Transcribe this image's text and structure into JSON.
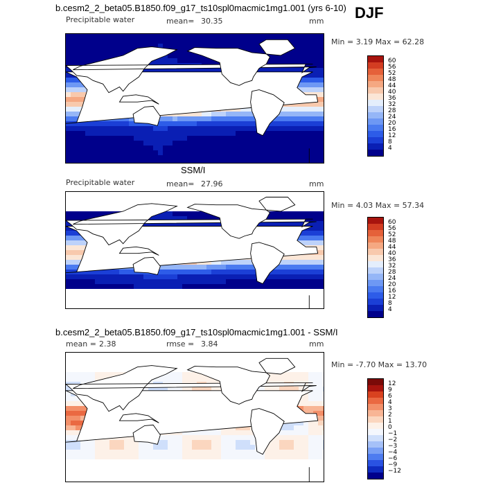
{
  "season": "DJF",
  "panels": [
    {
      "key": "model",
      "title": "b.cesm2_2_beta05.B1850.f09_g17_ts10spl0macmic1mg1.001 (yrs 6-10)",
      "left_label": "Precipitable water",
      "mean_label": "mean=",
      "mean_value": "30.35",
      "units": "mm",
      "minmax": "Min =    3.19  Max =   62.28",
      "levels": [
        "60",
        "56",
        "52",
        "48",
        "44",
        "40",
        "36",
        "32",
        "28",
        "24",
        "20",
        "16",
        "12",
        "8",
        "4"
      ]
    },
    {
      "key": "obs",
      "title": "SSM/I",
      "left_label": "Precipitable water",
      "mean_label": "mean=",
      "mean_value": "27.96",
      "units": "mm",
      "minmax": "Min =    4.03  Max =   57.34",
      "levels": [
        "60",
        "56",
        "52",
        "48",
        "44",
        "40",
        "36",
        "32",
        "28",
        "24",
        "20",
        "16",
        "12",
        "8",
        "4"
      ]
    },
    {
      "key": "diff",
      "title": "b.cesm2_2_beta05.B1850.f09_g17_ts10spl0macmic1mg1.001 - SSM/I",
      "mean_label": "mean =",
      "mean_value": "2.38",
      "rmse_label": "rmse =",
      "rmse_value": "3.84",
      "units": "mm",
      "minmax": "Min =   -7.70  Max =   13.70",
      "levels": [
        "12",
        "9",
        "6",
        "4",
        "3",
        "2",
        "1",
        "0",
        "−1",
        "−2",
        "−3",
        "−4",
        "−6",
        "−9",
        "−12"
      ]
    }
  ],
  "colors": {
    "abs_scale": [
      "#00008b",
      "#0a1fb4",
      "#1b3fd6",
      "#2d5ce8",
      "#4a7af0",
      "#6e98f4",
      "#95b6f7",
      "#bdd2fa",
      "#e4eefc",
      "#fbe6d6",
      "#f8c9ad",
      "#f5a882",
      "#ef865a",
      "#e5613a",
      "#d33d22",
      "#a8140e"
    ],
    "diff_scale": [
      "#00008b",
      "#0f2bc0",
      "#2a52e2",
      "#4e7cf0",
      "#7aa0f5",
      "#a6c1f8",
      "#cfdffb",
      "#f4f7fd",
      "#fdf1e8",
      "#fbd6bf",
      "#f8b595",
      "#f3906a",
      "#ea6942",
      "#d9421f",
      "#a8140e",
      "#7a0a08"
    ]
  }
}
